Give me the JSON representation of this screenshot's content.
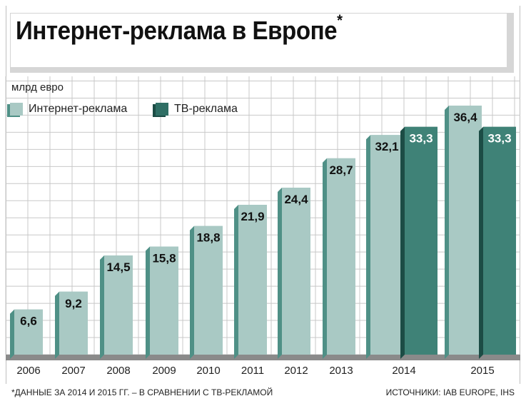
{
  "chart_data": {
    "type": "bar",
    "title": "Интернет-реклама в Европе",
    "title_mark": "*",
    "ylabel": "млрд евро",
    "categories": [
      "2006",
      "2007",
      "2008",
      "2009",
      "2010",
      "2011",
      "2012",
      "2013",
      "2014",
      "2015"
    ],
    "series": [
      {
        "name": "Интернет-реклама",
        "color": "#a9c9c4",
        "values": [
          6.6,
          9.2,
          14.5,
          15.8,
          18.8,
          21.9,
          24.4,
          28.7,
          32.1,
          36.4
        ],
        "labels": [
          "6,6",
          "9,2",
          "14,5",
          "15,8",
          "18,8",
          "21,9",
          "24,4",
          "28,7",
          "32,1",
          "36,4"
        ]
      },
      {
        "name": "ТВ-реклама",
        "color": "#3f8277",
        "values": [
          null,
          null,
          null,
          null,
          null,
          null,
          null,
          null,
          33.3,
          33.3
        ],
        "labels": [
          "",
          "",
          "",
          "",
          "",
          "",
          "",
          "",
          "33,3",
          "33,3"
        ]
      }
    ],
    "ylim": [
      0,
      40
    ],
    "grid": true,
    "legend": "top-left"
  },
  "footnote": "*ДАННЫЕ ЗА 2014 И 2015 ГГ. – В СРАВНЕНИИ С ТВ-РЕКЛАМОЙ",
  "source": "ИСТОЧНИКИ: IAB EUROPE, IHS"
}
